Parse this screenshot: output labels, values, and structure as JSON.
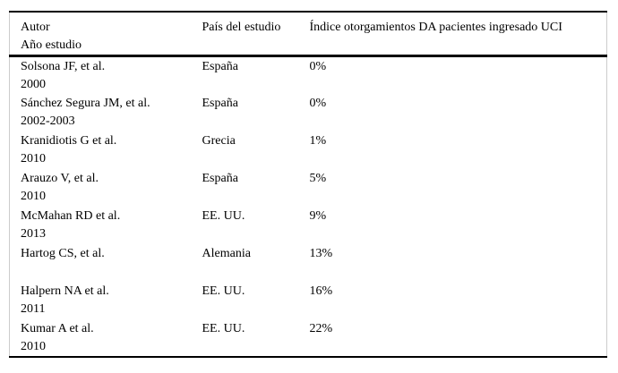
{
  "table": {
    "header": {
      "author_line1": "Autor",
      "author_line2": "Año estudio",
      "country": "País del estudio",
      "index": "Índice otorgamientos DA pacientes ingresado UCI"
    },
    "rows": [
      {
        "author": "Solsona JF, et al.",
        "year": "2000",
        "country": "España",
        "index": "0%"
      },
      {
        "author": "Sánchez Segura JM, et al.",
        "year": "2002-2003",
        "country": "España",
        "index": "0%"
      },
      {
        "author": "Kranidiotis G et al.",
        "year": "2010",
        "country": "Grecia",
        "index": "1%"
      },
      {
        "author": "Arauzo V, et al.",
        "year": "2010",
        "country": "España",
        "index": "5%"
      },
      {
        "author": "McMahan RD et al.",
        "year": "2013",
        "country": "EE. UU.",
        "index": "9%"
      },
      {
        "author": "Hartog CS, et al.",
        "year": "",
        "country": "Alemania",
        "index": "13%"
      },
      {
        "author": "Halpern NA et al.",
        "year": "2011",
        "country": "EE. UU.",
        "index": "16%"
      },
      {
        "author": "Kumar A et al.",
        "year": "2010",
        "country": "EE. UU.",
        "index": "22%"
      }
    ],
    "colors": {
      "rule_black": "#000000",
      "side_border_gray": "#cccccc",
      "background": "#ffffff",
      "text": "#000000"
    }
  }
}
